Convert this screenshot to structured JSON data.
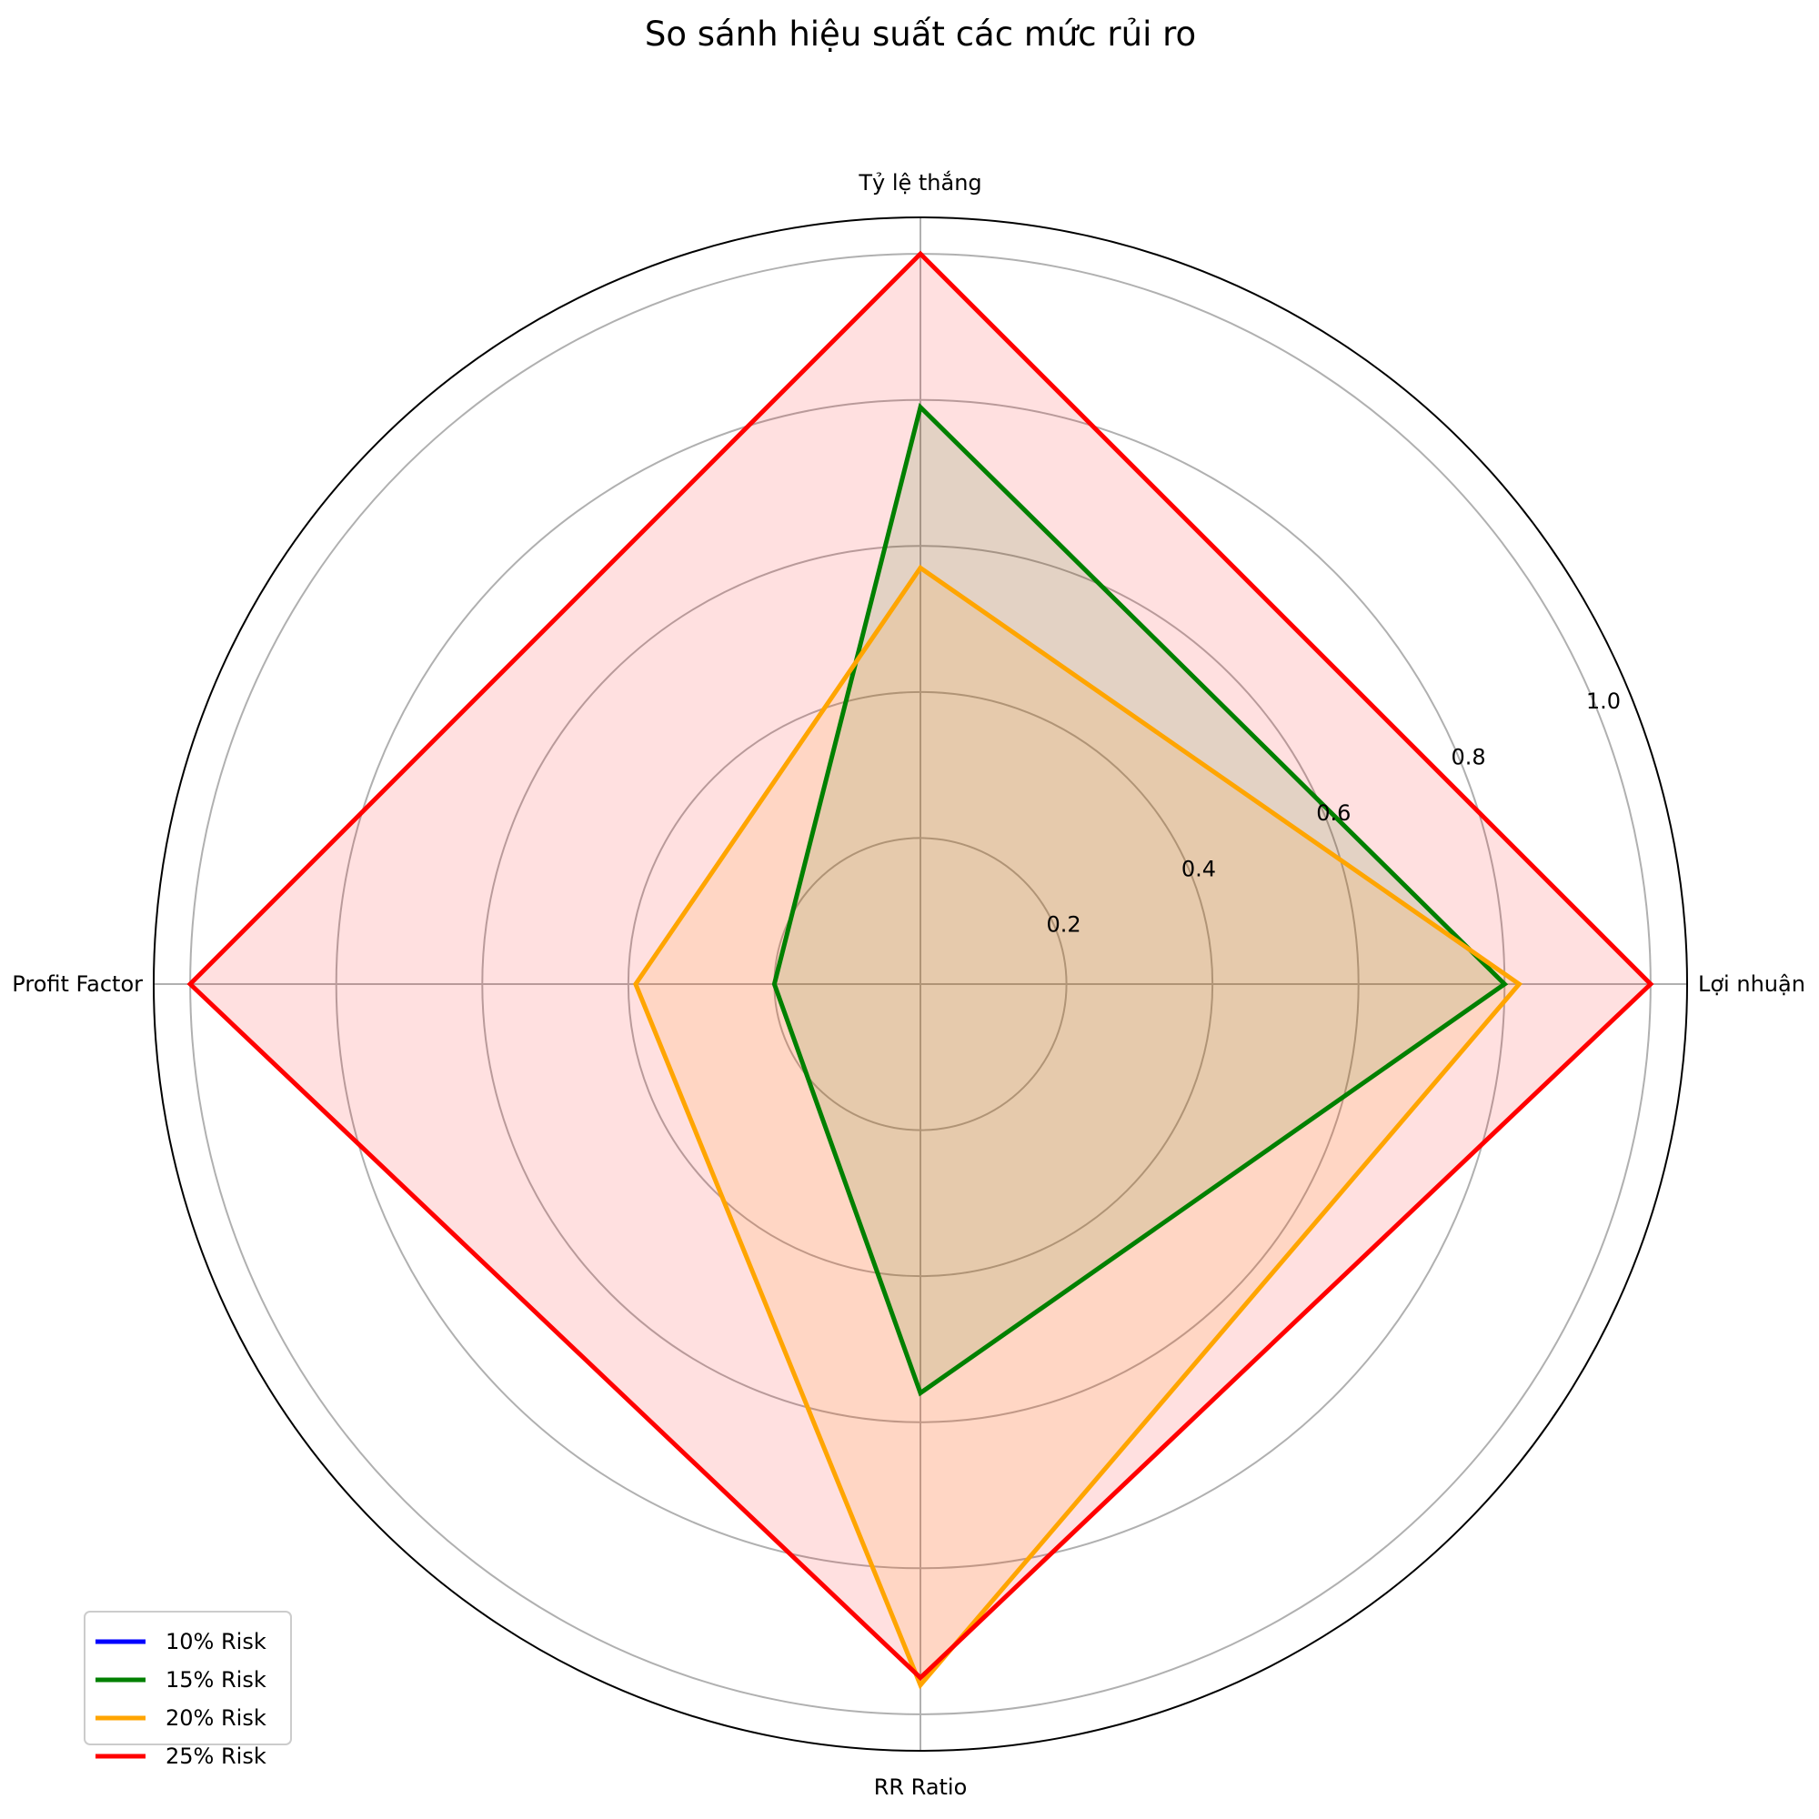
{
  "chart_data": {
    "type": "radar",
    "title": "So sánh hiệu suất các mức rủi ro",
    "axes": [
      "Lợi nhuận",
      "Tỷ lệ thắng",
      "Profit Factor",
      "RR Ratio"
    ],
    "rlim": [
      0,
      1.05
    ],
    "r_ticks": [
      0.2,
      0.4,
      0.6,
      0.8,
      1.0
    ],
    "r_tick_labels": [
      "0.2",
      "0.4",
      "0.6",
      "0.8",
      "1.0"
    ],
    "grid": true,
    "legend_position": "lower-left",
    "series": [
      {
        "name": "10% Risk",
        "color": "#0000ff",
        "fill": false,
        "values": [
          0,
          0,
          0,
          0
        ]
      },
      {
        "name": "15% Risk",
        "color": "#008000",
        "fill": true,
        "values": [
          0.8,
          0.79,
          0.2,
          0.56
        ]
      },
      {
        "name": "20% Risk",
        "color": "#ffa500",
        "fill": true,
        "values": [
          0.82,
          0.57,
          0.39,
          0.96
        ]
      },
      {
        "name": "25% Risk",
        "color": "#ff0000",
        "fill": true,
        "values": [
          1.0,
          1.0,
          1.0,
          0.95
        ]
      }
    ]
  }
}
